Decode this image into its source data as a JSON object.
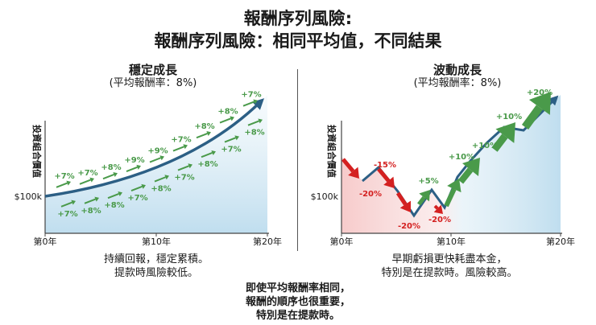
{
  "title_line1": "報酬序列風險:",
  "title_line2": "報酬序列風險：相同平均值，不同結果",
  "left": {
    "title": "穩定成長",
    "subtitle": "(平均報酬率：8%)",
    "y_axis": "投資組合價值",
    "y_tick": "$100k",
    "x_ticks": [
      "第0年",
      "第10年",
      "第20年"
    ],
    "upper_labels": [
      "+7%",
      "+7%",
      "+8%",
      "+9%",
      "+9%",
      "+7%",
      "+8%",
      "+8%",
      "+7%"
    ],
    "lower_labels": [
      "+7%",
      "+8%",
      "+8%",
      "+7%",
      "+8%",
      "+7%",
      "+8%",
      "+7%",
      "+8%"
    ],
    "caption_line1": "持續回報，穩定累積。",
    "caption_line2": "提款時風險較低。"
  },
  "right": {
    "title": "波動成長",
    "subtitle": "(平均報酬率：8%)",
    "y_axis": "投資組合價值",
    "y_tick": "$100k",
    "x_ticks": [
      "第0年",
      "第10年",
      "第20年"
    ],
    "labels": [
      "-20%",
      "-15%",
      "-20%",
      "+5%",
      "-20%",
      "+10%",
      "+10%",
      "+10%",
      "+20%"
    ],
    "caption_line1": "早期虧損更快耗盡本金，",
    "caption_line2": "特別是在提款時。風險較高。"
  },
  "footnote_line1": "即使平均報酬率相同，",
  "footnote_line2": "報酬的順序也很重要，",
  "footnote_line3": "特別是在提款時。",
  "colors": {
    "line": "#2c5f85",
    "green": "#4a9a4a",
    "red": "#d42020",
    "fill": "#cfe5f1"
  }
}
